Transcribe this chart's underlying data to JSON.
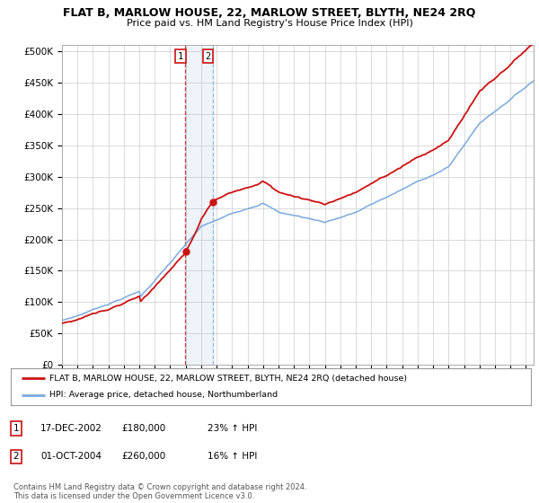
{
  "title": "FLAT B, MARLOW HOUSE, 22, MARLOW STREET, BLYTH, NE24 2RQ",
  "subtitle": "Price paid vs. HM Land Registry's House Price Index (HPI)",
  "yticks": [
    0,
    50000,
    100000,
    150000,
    200000,
    250000,
    300000,
    350000,
    400000,
    450000,
    500000
  ],
  "ylim": [
    0,
    510000
  ],
  "hpi_color": "#7aaadd",
  "price_color": "#cc1111",
  "sale1_year": 2002.96,
  "sale1_price": 180000,
  "sale2_year": 2004.75,
  "sale2_price": 260000,
  "legend_price_label": "FLAT B, MARLOW HOUSE, 22, MARLOW STREET, BLYTH, NE24 2RQ (detached house)",
  "legend_hpi_label": "HPI: Average price, detached house, Northumberland",
  "table_row1": [
    "1",
    "17-DEC-2002",
    "£180,000",
    "23% ↑ HPI"
  ],
  "table_row2": [
    "2",
    "01-OCT-2004",
    "£260,000",
    "16% ↑ HPI"
  ],
  "footnote": "Contains HM Land Registry data © Crown copyright and database right 2024.\nThis data is licensed under the Open Government Licence v3.0.",
  "background_color": "#ffffff",
  "grid_color": "#cccccc",
  "xstart": 1995.5,
  "xend": 2025.5
}
